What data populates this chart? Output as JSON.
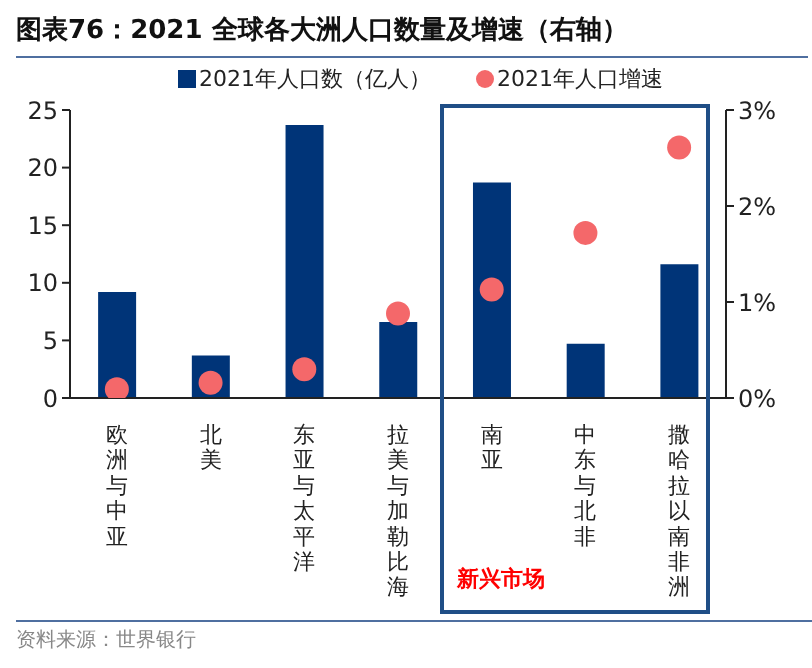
{
  "chart_data": {
    "type": "bar",
    "title": "图表76：2021 全球各大洲人口数量及增速（右轴）",
    "categories": [
      "欧洲与中亚",
      "北美",
      "东亚与太平洋",
      "拉美与加勒比海",
      "南亚",
      "中东与北非",
      "撒哈拉以南非洲"
    ],
    "series": [
      {
        "name": "2021年人口数（亿人）",
        "color": "#003478",
        "values": [
          9.2,
          3.7,
          23.7,
          6.6,
          18.7,
          4.7,
          11.6
        ]
      },
      {
        "name": "2021年人口增速",
        "type": "scatter",
        "axis": "y2",
        "color": "#f4686a",
        "values": [
          0.09,
          0.16,
          0.3,
          0.88,
          1.13,
          1.72,
          2.61
        ]
      }
    ],
    "ylim": [
      0,
      25
    ],
    "yticks": [
      0,
      5,
      10,
      15,
      20,
      25
    ],
    "y2lim": [
      0,
      3
    ],
    "y2ticks": [
      {
        "value": 0,
        "label": "0%"
      },
      {
        "value": 1,
        "label": "1%"
      },
      {
        "value": 2,
        "label": "2%"
      },
      {
        "value": 3,
        "label": "3%"
      }
    ],
    "legend": "top",
    "marker": "circle",
    "annotations": [
      "新兴市场",
      "资料来源：世界银行"
    ]
  }
}
